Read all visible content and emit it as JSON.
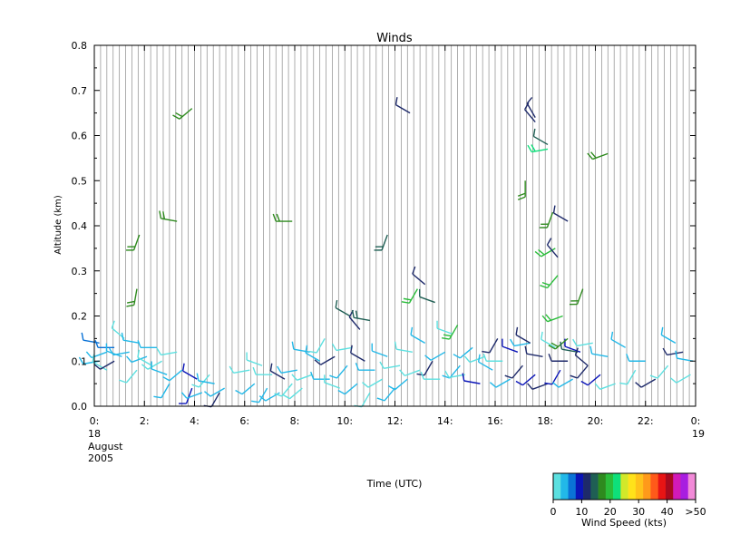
{
  "chart_data": {
    "type": "wind-barb-time-height",
    "title": "Winds",
    "xlabel": "Time (UTC)",
    "ylabel": "Altitude (km)",
    "xlim": [
      0,
      24
    ],
    "ylim": [
      0,
      0.8
    ],
    "x_ticks": [
      "0:",
      "2:",
      "4:",
      "6:",
      "8:",
      "10:",
      "12:",
      "14:",
      "16:",
      "18:",
      "20:",
      "22:",
      "0:"
    ],
    "x_tick_values": [
      0,
      2,
      4,
      6,
      8,
      10,
      12,
      14,
      16,
      18,
      20,
      22,
      24
    ],
    "y_ticks": [
      "0.0",
      "0.1",
      "0.2",
      "0.3",
      "0.4",
      "0.5",
      "0.6",
      "0.7",
      "0.8"
    ],
    "y_tick_values": [
      0,
      0.1,
      0.2,
      0.3,
      0.4,
      0.5,
      0.6,
      0.7,
      0.8
    ],
    "date_start": [
      "18",
      "August",
      "2005"
    ],
    "date_end": [
      "19"
    ],
    "grid": true,
    "grid_interval_hours": 0.25,
    "legend": {
      "title": "Wind Speed (kts)",
      "ticks": [
        "0",
        "10",
        "20",
        "30",
        "40",
        ">50"
      ],
      "tick_values": [
        0,
        10,
        20,
        30,
        40,
        50
      ],
      "colors": [
        "#5ce0e0",
        "#22b8e8",
        "#0a72d6",
        "#0a14b8",
        "#1e2a6a",
        "#1f5f54",
        "#2e8a1e",
        "#2abd3a",
        "#0ee07a",
        "#d2e82a",
        "#ffe21a",
        "#ffc21a",
        "#ff9a1a",
        "#ff5a1a",
        "#e81414",
        "#a80a1e",
        "#d21ab8",
        "#a81ee0",
        "#f28ad8"
      ]
    },
    "series": [
      {
        "x": [
          0.2,
          0.2,
          0.5,
          0.5,
          0.8,
          0.8,
          1.1,
          1.2,
          1.4,
          1.7,
          1.8,
          2.1,
          2.3,
          2.5,
          2.7,
          2.9,
          3.0,
          3.3,
          3.5,
          3.9,
          4.1,
          4.3,
          4.6,
          4.8,
          5.0,
          5.2,
          6.2,
          6.4,
          6.7,
          6.9,
          7.1,
          7.4,
          7.6,
          7.9,
          8.1,
          8.3,
          8.6,
          8.7,
          9.0,
          9.2,
          9.4,
          9.6,
          9.8,
          10.1,
          10.3,
          10.5,
          10.8,
          11.0,
          11.2,
          11.5,
          11.7,
          12.0,
          12.2,
          12.5,
          12.7,
          13.0,
          13.2,
          13.5,
          13.8,
          14.0,
          14.3,
          14.6,
          14.8,
          15.1,
          15.4,
          15.6,
          15.9,
          16.1,
          16.3,
          16.6,
          16.9,
          17.1,
          17.4,
          17.6,
          17.9,
          18.1,
          18.4,
          18.6,
          18.9,
          19.1,
          19.4,
          19.7,
          19.9,
          20.2,
          20.5,
          20.8,
          21.2,
          21.6,
          22.0,
          22.4,
          22.9,
          23.2,
          23.5,
          23.8,
          23.9
        ],
        "y": [
          0.1,
          0.14,
          0.12,
          0.08,
          0.13,
          0.1,
          0.11,
          0.15,
          0.12,
          0.08,
          0.14,
          0.11,
          0.09,
          0.13,
          0.1,
          0.07,
          0.05,
          0.12,
          0.08,
          0.04,
          0.06,
          0.03,
          0.07,
          0.05,
          0.03,
          0.04,
          0.08,
          0.05,
          0.09,
          0.04,
          0.07,
          0.03,
          0.06,
          0.05,
          0.08,
          0.04,
          0.12,
          0.07,
          0.1,
          0.15,
          0.06,
          0.11,
          0.04,
          0.09,
          0.13,
          0.05,
          0.1,
          0.03,
          0.08,
          0.06,
          0.11,
          0.04,
          0.09,
          0.06,
          0.12,
          0.08,
          0.14,
          0.1,
          0.06,
          0.12,
          0.16,
          0.09,
          0.07,
          0.13,
          0.05,
          0.11,
          0.08,
          0.15,
          0.1,
          0.06,
          0.12,
          0.09,
          0.14,
          0.07,
          0.11,
          0.05,
          0.13,
          0.08,
          0.1,
          0.06,
          0.12,
          0.09,
          0.14,
          0.07,
          0.11,
          0.05,
          0.13,
          0.08,
          0.1,
          0.06,
          0.09,
          0.14,
          0.12,
          0.07,
          0.1
        ],
        "speed": [
          3,
          8,
          4,
          2,
          6,
          12,
          3,
          2,
          5,
          1,
          3,
          4,
          2,
          3,
          2,
          3,
          4,
          2,
          3,
          10,
          11,
          3,
          2,
          3,
          12,
          3,
          2,
          3,
          2,
          4,
          2,
          3,
          12,
          2,
          3,
          2,
          3,
          2,
          3,
          2,
          3,
          12,
          2,
          3,
          2,
          3,
          12,
          2,
          3,
          2,
          3,
          3,
          2,
          3,
          2,
          2,
          3,
          12,
          2,
          3,
          2,
          3,
          2,
          3,
          11,
          2,
          3,
          12,
          2,
          3,
          11,
          12,
          3,
          11,
          12,
          13,
          2,
          11,
          12,
          3,
          11,
          12,
          2,
          11,
          3,
          2,
          3,
          2,
          3,
          12,
          2,
          3,
          12,
          2,
          3
        ],
        "direction": [
          260,
          280,
          250,
          300,
          270,
          240,
          290,
          310,
          260,
          220,
          280,
          250,
          300,
          270,
          240,
          290,
          210,
          260,
          230,
          200,
          300,
          250,
          220,
          280,
          210,
          240,
          260,
          230,
          290,
          210,
          270,
          240,
          300,
          220,
          260,
          230,
          280,
          250,
          300,
          210,
          270,
          240,
          290,
          220,
          260,
          230,
          300,
          210,
          270,
          240,
          290,
          220,
          260,
          230,
          280,
          250,
          300,
          210,
          270,
          240,
          290,
          220,
          260,
          230,
          280,
          250,
          300,
          210,
          270,
          240,
          290,
          220,
          260,
          230,
          280,
          250,
          300,
          210,
          270,
          240,
          290,
          220,
          260,
          230,
          280,
          250,
          300,
          210,
          270,
          240,
          220,
          300,
          260,
          240,
          280
        ]
      },
      {
        "x": [
          1.7,
          1.8,
          3.3,
          3.9,
          7.9,
          11.7,
          12.6,
          14.5,
          17.2,
          17.6,
          18.1,
          18.3,
          18.4,
          18.5,
          18.7,
          18.9,
          19.5,
          20.5,
          12.9
        ],
        "y": [
          0.26,
          0.38,
          0.41,
          0.66,
          0.41,
          0.38,
          0.65,
          0.18,
          0.5,
          0.63,
          0.57,
          0.43,
          0.35,
          0.29,
          0.2,
          0.15,
          0.26,
          0.56,
          0.26
        ],
        "speed": [
          18,
          19,
          17,
          17,
          19,
          16,
          12,
          21,
          17,
          13,
          24,
          19,
          22,
          21,
          22,
          19,
          18,
          19,
          21
        ],
        "direction": [
          190,
          200,
          280,
          230,
          270,
          200,
          300,
          210,
          180,
          320,
          260,
          200,
          240,
          220,
          250,
          230,
          200,
          250,
          210
        ]
      },
      {
        "x": [
          10.2,
          10.6,
          11.0,
          13.2,
          13.6,
          17.4,
          17.6,
          18.1,
          18.5,
          18.9,
          19.3,
          19.7
        ],
        "y": [
          0.2,
          0.17,
          0.19,
          0.27,
          0.23,
          0.14,
          0.64,
          0.58,
          0.33,
          0.41,
          0.12,
          0.09
        ],
        "speed": [
          14,
          13,
          15,
          12,
          14,
          13,
          12,
          14,
          13,
          12,
          14,
          13
        ],
        "direction": [
          300,
          320,
          280,
          310,
          290,
          300,
          330,
          300,
          320,
          300,
          280,
          310
        ]
      }
    ]
  }
}
